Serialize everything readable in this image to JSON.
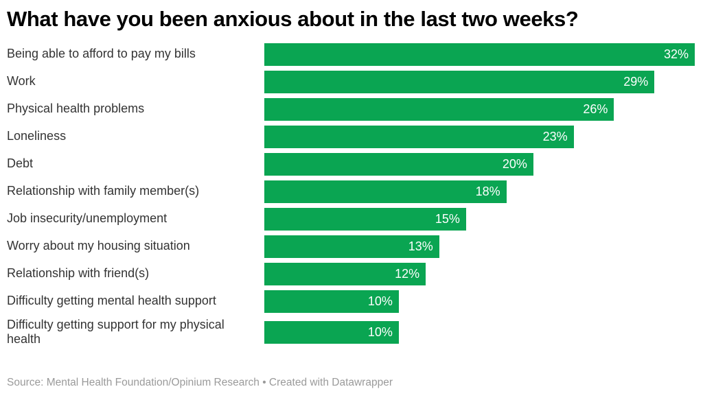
{
  "header": {
    "title": "What have you been anxious about in the last two weeks?"
  },
  "footer": {
    "source": "Source: Mental Health Foundation/Opinium Research • Created with Datawrapper"
  },
  "colors": {
    "bar": "#0aa552",
    "title": "#000000",
    "label": "#333333",
    "value_label": "#ffffff",
    "footer_text": "#9a9a9a",
    "background": "#ffffff"
  },
  "chart_data": {
    "type": "bar",
    "orientation": "horizontal",
    "title": "What have you been anxious about in the last two weeks?",
    "categories": [
      "Being able to afford to pay my bills",
      "Work",
      "Physical health problems",
      "Loneliness",
      "Debt",
      "Relationship with family member(s)",
      "Job insecurity/unemployment",
      "Worry about my housing situation",
      "Relationship with friend(s)",
      "Difficulty getting mental health support",
      "Difficulty getting support for my physical health"
    ],
    "values": [
      32,
      29,
      26,
      23,
      20,
      18,
      15,
      13,
      12,
      10,
      10
    ],
    "value_suffix": "%",
    "xlabel": "",
    "ylabel": "",
    "xlim": [
      0,
      32
    ],
    "grid": false,
    "legend": false,
    "value_labels": "inside-end, white",
    "source": "Source: Mental Health Foundation/Opinium Research",
    "attribution": "Created with Datawrapper"
  }
}
